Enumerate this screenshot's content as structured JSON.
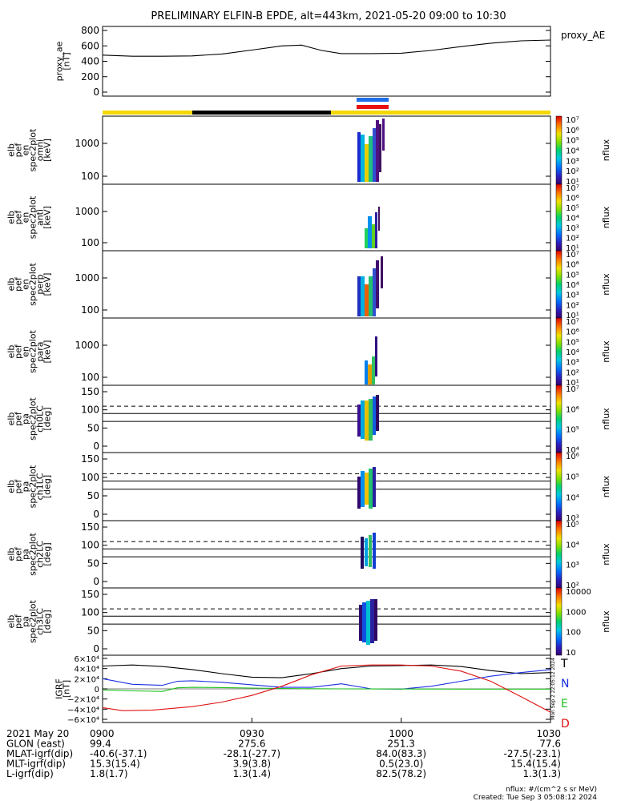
{
  "title": "PRELIMINARY ELFIN-B EPDE, alt=443km, 2021-05-20 09:00 to 10:30",
  "chart_data": {
    "type": "line",
    "time_range": [
      "09:00",
      "10:30"
    ],
    "panels": [
      {
        "id": "proxy_ae",
        "ylabel": [
          "proxy_ae",
          "[nT]"
        ],
        "ylim": [
          0,
          800
        ],
        "ticks": [
          "800",
          "600",
          "400",
          "200",
          "0"
        ],
        "legend": "proxy_AE",
        "series": [
          {
            "name": "proxy_AE",
            "x": [
              0,
              6,
              12,
              18,
              24,
              30,
              36,
              40,
              44,
              48,
              54,
              60,
              66,
              72,
              78,
              84,
              90
            ],
            "y": [
              480,
              465,
              465,
              470,
              495,
              545,
              600,
              610,
              540,
              500,
              500,
              505,
              540,
              590,
              635,
              665,
              675
            ]
          }
        ]
      },
      {
        "id": "omni",
        "ylabel": [
          "elb",
          "pef",
          "en",
          "spec2plot",
          "omni",
          "[keV]"
        ],
        "ticks": [
          "1000",
          "100"
        ],
        "cbar": [
          "10⁷",
          "10⁶",
          "10⁵",
          "10⁴",
          "10³",
          "10²",
          "10¹"
        ],
        "cbar_label": "nflux"
      },
      {
        "id": "anti",
        "ylabel": [
          "elb",
          "pef",
          "en",
          "spec2plot",
          "anti",
          "[keV]"
        ],
        "ticks": [
          "1000",
          "100"
        ],
        "cbar": [
          "10⁷",
          "10⁶",
          "10⁵",
          "10⁴",
          "10³",
          "10²",
          "10¹"
        ],
        "cbar_label": "nflux"
      },
      {
        "id": "perp",
        "ylabel": [
          "elb",
          "pef",
          "en",
          "spec2plot",
          "perp",
          "[keV]"
        ],
        "ticks": [
          "1000",
          "100"
        ],
        "cbar": [
          "10⁷",
          "10⁶",
          "10⁵",
          "10⁴",
          "10³",
          "10²",
          "10¹"
        ],
        "cbar_label": "nflux"
      },
      {
        "id": "para",
        "ylabel": [
          "elb",
          "pef",
          "en",
          "spec2plot",
          "para",
          "[keV]"
        ],
        "ticks": [
          "1000",
          "100"
        ],
        "cbar": [
          "10⁷",
          "10⁶",
          "10⁵",
          "10⁴",
          "10³",
          "10²",
          "10¹"
        ],
        "cbar_label": "nflux"
      },
      {
        "id": "ch0LC",
        "ylabel": [
          "elb",
          "pef",
          "pa",
          "spec2plot",
          "ch0LC",
          "[deg]"
        ],
        "ticks": [
          "150",
          "100",
          "50",
          "0"
        ],
        "cbar": [
          "10⁷",
          "10⁶",
          "10⁵",
          "10⁴"
        ],
        "cbar_label": "nflux"
      },
      {
        "id": "ch1LC",
        "ylabel": [
          "elb",
          "pef",
          "pa",
          "spec2plot",
          "ch1LC",
          "[deg]"
        ],
        "ticks": [
          "150",
          "100",
          "50",
          "0"
        ],
        "cbar": [
          "10⁶",
          "10⁵",
          "10⁴",
          "10³"
        ],
        "cbar_label": "nflux"
      },
      {
        "id": "ch2LC",
        "ylabel": [
          "elb",
          "pef",
          "pa",
          "spec2plot",
          "ch2LC",
          "[deg]"
        ],
        "ticks": [
          "150",
          "100",
          "50",
          "0"
        ],
        "cbar": [
          "10⁵",
          "10⁴",
          "10³",
          "10²"
        ],
        "cbar_label": "nflux"
      },
      {
        "id": "ch3LC",
        "ylabel": [
          "elb",
          "pef",
          "pa",
          "spec2plot",
          "ch3LC",
          "[deg]"
        ],
        "ticks": [
          "150",
          "100",
          "50",
          "0"
        ],
        "cbar": [
          "10000",
          "1000",
          "100",
          "10"
        ],
        "cbar_label": "nflux"
      },
      {
        "id": "igrf",
        "ylabel": [
          "IGRF",
          "[nT]"
        ],
        "ticks": [
          "6×10⁴",
          "4×10⁴",
          "2×10⁴",
          "0",
          "−2×10⁴",
          "−4×10⁴",
          "−6×10⁴"
        ],
        "ylim": [
          -60000,
          60000
        ],
        "series": [
          {
            "name": "T",
            "color": "#000000",
            "x": [
              0,
              6,
              12,
              18,
              24,
              30,
              36,
              42,
              48,
              54,
              60,
              66,
              72,
              78,
              84,
              90
            ],
            "y": [
              45000,
              47000,
              44000,
              38000,
              30000,
              23000,
              22000,
              30000,
              40000,
              45000,
              46000,
              47000,
              44000,
              36000,
              30000,
              32000
            ]
          },
          {
            "name": "N",
            "color": "#1a2fe0",
            "x": [
              0,
              6,
              12,
              15,
              18,
              24,
              30,
              36,
              42,
              48,
              54,
              60,
              66,
              72,
              78,
              84,
              90
            ],
            "y": [
              20000,
              9000,
              7000,
              15000,
              16000,
              13000,
              8000,
              3000,
              3000,
              10000,
              0,
              -500,
              5000,
              15000,
              25000,
              32000,
              38000
            ]
          },
          {
            "name": "E",
            "color": "#1cc01c",
            "x": [
              0,
              6,
              12,
              15,
              18,
              24,
              30,
              36,
              42,
              48,
              54,
              60,
              66,
              72,
              78,
              84,
              90
            ],
            "y": [
              -2000,
              -4000,
              -5000,
              2000,
              3000,
              2500,
              1500,
              800,
              300,
              0,
              -200,
              -300,
              -300,
              -400,
              -400,
              -500,
              -500
            ]
          },
          {
            "name": "D",
            "color": "#e01010",
            "x": [
              0,
              4,
              10,
              18,
              24,
              30,
              36,
              42,
              48,
              54,
              60,
              66,
              72,
              78,
              84,
              90
            ],
            "y": [
              -37000,
              -43000,
              -42000,
              -35000,
              -26000,
              -13000,
              5000,
              28000,
              45000,
              47000,
              47000,
              45000,
              35000,
              15000,
              -15000,
              -46000
            ]
          }
        ]
      }
    ],
    "x_tick_labels": [
      "0900",
      "0930",
      "1000",
      "1030"
    ]
  },
  "legend_igrf": [
    "T",
    "N",
    "E",
    "D"
  ],
  "footer": {
    "rows": [
      {
        "label": "2021 May 20",
        "values": [
          "0900",
          "0930",
          "1000",
          "1030"
        ]
      },
      {
        "label": "GLON (east)",
        "values": [
          "99.4",
          "275.6",
          "251.3",
          "77.6"
        ]
      },
      {
        "label": "MLAT-igrf(dip)",
        "values": [
          "-40.6(-37.1)",
          "-28.1(-27.7)",
          "84.0(83.3)",
          "-27.5(-23.1)"
        ]
      },
      {
        "label": "MLT-igrf(dip)",
        "values": [
          "15.3(15.4)",
          "3.9(3.8)",
          "0.5(23.0)",
          "15.4(15.4)"
        ]
      },
      {
        "label": "L-igrf(dip)",
        "values": [
          "1.8(1.7)",
          "1.3(1.4)",
          "82.5(78.2)",
          "1.3(1.3)"
        ]
      }
    ],
    "units": "nflux: #/(cm^2 s sr MeV)",
    "created": "Created: Tue Sep  3 05:08:12 2024",
    "side_stamp": "Mon Sep  2 22:05:12 2024"
  }
}
